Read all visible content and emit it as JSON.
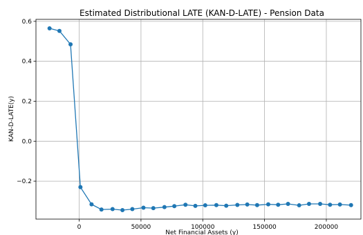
{
  "chart_data": {
    "type": "line",
    "title": "Estimated Distributional LATE (KAN-D-LATE) - Pension Data",
    "xlabel": "Net Financial Assets (y)",
    "ylabel": "KAN-D-LATE(y)",
    "xlim": [
      -35000,
      228000
    ],
    "ylim": [
      -0.39,
      0.61
    ],
    "xticks": [
      0,
      50000,
      100000,
      150000,
      200000
    ],
    "xtick_labels": [
      "0",
      "50000",
      "100000",
      "150000",
      "200000"
    ],
    "yticks": [
      -0.2,
      0.0,
      0.2,
      0.4,
      0.6
    ],
    "ytick_labels": [
      "−0.2",
      "0.0",
      "0.2",
      "0.4",
      "0.6"
    ],
    "grid": true,
    "series": [
      {
        "color": "#1f77b4",
        "marker": "circle",
        "x": [
          -24000,
          -16000,
          -7000,
          1000,
          10000,
          18000,
          27000,
          35000,
          43000,
          52000,
          60000,
          69000,
          77000,
          86000,
          94000,
          102000,
          111000,
          119000,
          128000,
          136000,
          144000,
          153000,
          161000,
          169000,
          178000,
          186000,
          195000,
          203000,
          211000,
          220000
        ],
        "y": [
          0.565,
          0.552,
          0.485,
          -0.23,
          -0.316,
          -0.342,
          -0.34,
          -0.345,
          -0.34,
          -0.333,
          -0.335,
          -0.33,
          -0.325,
          -0.318,
          -0.324,
          -0.321,
          -0.32,
          -0.323,
          -0.319,
          -0.317,
          -0.32,
          -0.316,
          -0.318,
          -0.314,
          -0.321,
          -0.314,
          -0.314,
          -0.318,
          -0.317,
          -0.32
        ]
      }
    ]
  }
}
